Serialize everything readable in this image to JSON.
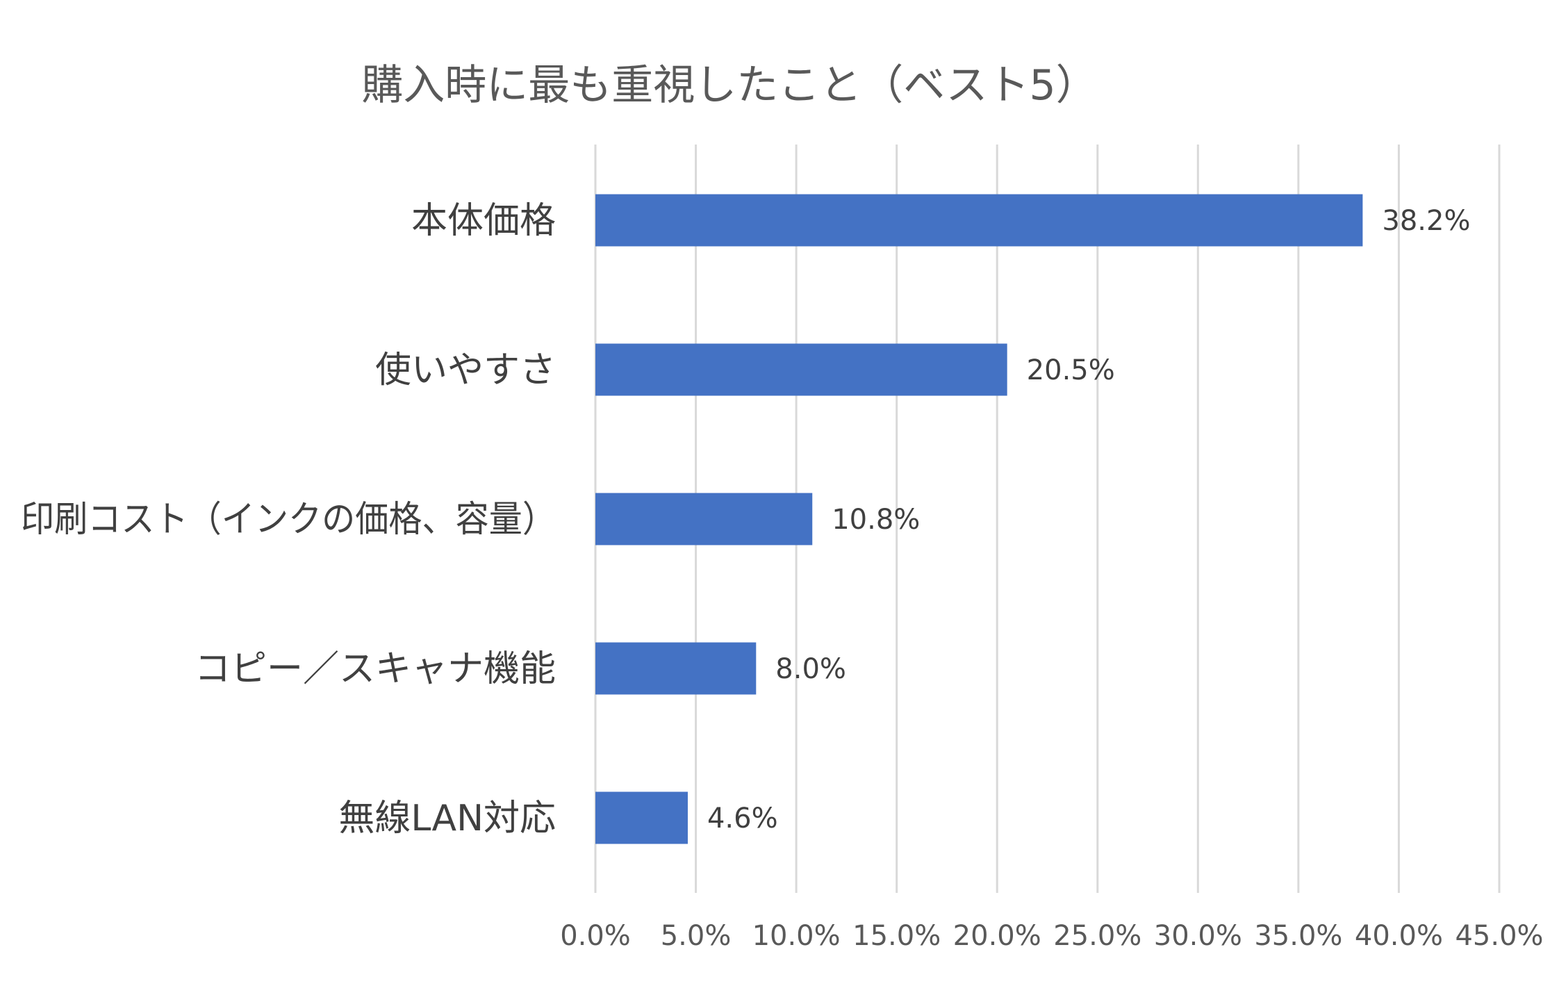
{
  "chart_data": {
    "type": "bar",
    "orientation": "horizontal",
    "title": "購入時に最も重視したこと（ベスト5）",
    "categories": [
      "本体価格",
      "使いやすさ",
      "印刷コスト（インクの価格、容量）",
      "コピー／スキャナ機能",
      "無線LAN対応"
    ],
    "values": [
      38.2,
      20.5,
      10.8,
      8.0,
      4.6
    ],
    "data_labels": [
      "38.2%",
      "20.5%",
      "10.8%",
      "8.0%",
      "4.6%"
    ],
    "xlim": [
      0,
      45
    ],
    "x_ticks": [
      0,
      5,
      10,
      15,
      20,
      25,
      30,
      35,
      40,
      45
    ],
    "x_tick_labels": [
      "0.0%",
      "5.0%",
      "10.0%",
      "15.0%",
      "20.0%",
      "25.0%",
      "30.0%",
      "35.0%",
      "40.0%",
      "45.0%"
    ],
    "grid": "vertical",
    "legend": "none",
    "bar_color": "#4472c4",
    "grid_color": "#d9d9d9",
    "text_color": "#404040"
  }
}
